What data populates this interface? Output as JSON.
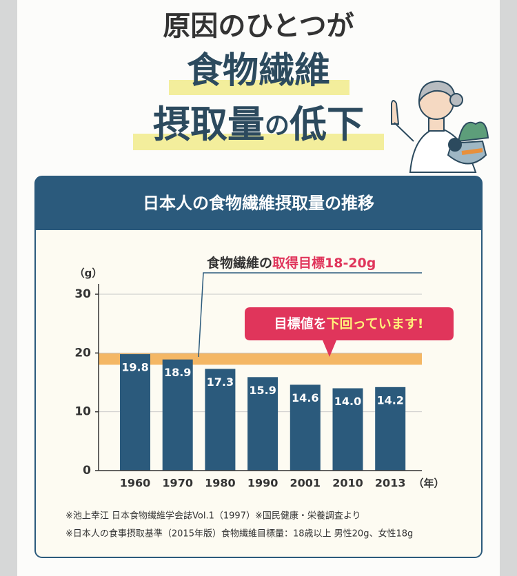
{
  "header": {
    "line1": "原因のひとつが",
    "line2": "食物繊維",
    "line3_a": "摂取量",
    "line3_b": "の",
    "line3_c": "低下"
  },
  "chart_data": {
    "type": "bar",
    "title": "日本人の食物繊維摂取量の推移",
    "y_unit": "（g）",
    "x_unit": "（年）",
    "categories": [
      "1960",
      "1970",
      "1980",
      "1990",
      "2001",
      "2010",
      "2013"
    ],
    "values": [
      19.8,
      18.9,
      17.3,
      15.9,
      14.6,
      14.0,
      14.2
    ],
    "value_labels": [
      "19.8",
      "18.9",
      "17.3",
      "15.9",
      "14.6",
      "14.0",
      "14.2"
    ],
    "color": "#2b5a7c",
    "ylim": [
      0,
      30
    ],
    "yticks": [
      0,
      10,
      20,
      30
    ],
    "grid": true,
    "target_band": [
      18,
      20
    ],
    "target_color": "#f4b765",
    "target_label_a": "食物繊維の",
    "target_label_b": "取得目標18-20g",
    "callout_a": "目標値を",
    "callout_b": "下回っています!"
  },
  "notes": [
    "※池上幸江 日本食物繊維学会誌Vol.1（1997）※国民健康・栄養調査より",
    "※日本人の食事摂取基準（2015年版）食物繊維目標量：18歳以上 男性20g、女性18g"
  ]
}
